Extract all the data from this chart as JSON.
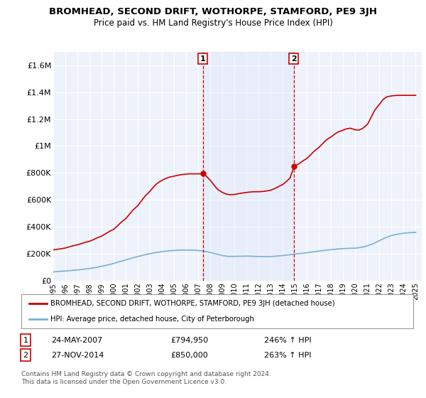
{
  "title": "BROMHEAD, SECOND DRIFT, WOTHORPE, STAMFORD, PE9 3JH",
  "subtitle": "Price paid vs. HM Land Registry's House Price Index (HPI)",
  "ylim": [
    0,
    1700000
  ],
  "yticks": [
    0,
    200000,
    400000,
    600000,
    800000,
    1000000,
    1200000,
    1400000,
    1600000
  ],
  "ytick_labels": [
    "£0",
    "£200K",
    "£400K",
    "£600K",
    "£800K",
    "£1M",
    "£1.2M",
    "£1.4M",
    "£1.6M"
  ],
  "background_color": "#ffffff",
  "plot_bg_color": "#eef2fb",
  "grid_color": "#ffffff",
  "red_line_color": "#cc0000",
  "blue_line_color": "#7ab0d4",
  "marker1_date": 2007.39,
  "marker1_value": 794950,
  "marker1_label": "1",
  "marker1_text": "24-MAY-2007",
  "marker1_price": "£794,950",
  "marker1_hpi": "246% ↑ HPI",
  "marker2_date": 2014.9,
  "marker2_value": 850000,
  "marker2_label": "2",
  "marker2_text": "27-NOV-2014",
  "marker2_price": "£850,000",
  "marker2_hpi": "263% ↑ HPI",
  "legend_line1": "BROMHEAD, SECOND DRIFT, WOTHORPE, STAMFORD, PE9 3JH (detached house)",
  "legend_line2": "HPI: Average price, detached house, City of Peterborough",
  "footer1": "Contains HM Land Registry data © Crown copyright and database right 2024.",
  "footer2": "This data is licensed under the Open Government Licence v3.0.",
  "x_start": 1995.0,
  "x_end": 2025.5,
  "xtick_years": [
    1995,
    1996,
    1997,
    1998,
    1999,
    2000,
    2001,
    2002,
    2003,
    2004,
    2005,
    2006,
    2007,
    2008,
    2009,
    2010,
    2011,
    2012,
    2013,
    2014,
    2015,
    2016,
    2017,
    2018,
    2019,
    2020,
    2021,
    2022,
    2023,
    2024,
    2025
  ],
  "red_x": [
    1995.0,
    1995.3,
    1995.6,
    1996.0,
    1996.3,
    1996.6,
    1997.0,
    1997.3,
    1997.6,
    1998.0,
    1998.3,
    1998.6,
    1999.0,
    1999.3,
    1999.6,
    2000.0,
    2000.3,
    2000.6,
    2001.0,
    2001.3,
    2001.6,
    2002.0,
    2002.3,
    2002.6,
    2003.0,
    2003.3,
    2003.6,
    2004.0,
    2004.3,
    2004.6,
    2005.0,
    2005.3,
    2005.6,
    2006.0,
    2006.3,
    2006.6,
    2007.0,
    2007.39,
    2007.6,
    2008.0,
    2008.3,
    2008.6,
    2009.0,
    2009.3,
    2009.6,
    2010.0,
    2010.3,
    2010.6,
    2011.0,
    2011.3,
    2011.6,
    2012.0,
    2012.3,
    2012.6,
    2013.0,
    2013.3,
    2013.6,
    2014.0,
    2014.3,
    2014.6,
    2014.9,
    2015.0,
    2015.3,
    2015.6,
    2016.0,
    2016.3,
    2016.6,
    2017.0,
    2017.3,
    2017.6,
    2018.0,
    2018.3,
    2018.6,
    2019.0,
    2019.3,
    2019.6,
    2020.0,
    2020.3,
    2020.6,
    2021.0,
    2021.3,
    2021.6,
    2022.0,
    2022.3,
    2022.6,
    2023.0,
    2023.3,
    2023.6,
    2024.0,
    2024.3,
    2024.6,
    2025.0
  ],
  "red_y": [
    228000,
    232000,
    236000,
    242000,
    250000,
    258000,
    266000,
    274000,
    283000,
    292000,
    303000,
    316000,
    330000,
    346000,
    363000,
    381000,
    405000,
    432000,
    460000,
    492000,
    524000,
    557000,
    592000,
    628000,
    663000,
    695000,
    722000,
    745000,
    758000,
    768000,
    776000,
    782000,
    787000,
    791000,
    793000,
    793000,
    793000,
    794950,
    782000,
    745000,
    710000,
    678000,
    655000,
    643000,
    638000,
    640000,
    645000,
    650000,
    655000,
    658000,
    660000,
    660000,
    662000,
    665000,
    672000,
    682000,
    696000,
    714000,
    736000,
    762000,
    840000,
    850000,
    866000,
    885000,
    908000,
    934000,
    962000,
    990000,
    1018000,
    1045000,
    1068000,
    1088000,
    1105000,
    1118000,
    1128000,
    1132000,
    1120000,
    1118000,
    1130000,
    1160000,
    1210000,
    1265000,
    1310000,
    1345000,
    1365000,
    1372000,
    1375000,
    1376000,
    1376000,
    1376000,
    1376000,
    1376000
  ],
  "blue_x": [
    1995.0,
    1995.5,
    1996.0,
    1996.5,
    1997.0,
    1997.5,
    1998.0,
    1998.5,
    1999.0,
    1999.5,
    2000.0,
    2000.5,
    2001.0,
    2001.5,
    2002.0,
    2002.5,
    2003.0,
    2003.5,
    2004.0,
    2004.5,
    2005.0,
    2005.5,
    2006.0,
    2006.5,
    2007.0,
    2007.5,
    2008.0,
    2008.5,
    2009.0,
    2009.5,
    2010.0,
    2010.5,
    2011.0,
    2011.5,
    2012.0,
    2012.5,
    2013.0,
    2013.5,
    2014.0,
    2014.5,
    2015.0,
    2015.5,
    2016.0,
    2016.5,
    2017.0,
    2017.5,
    2018.0,
    2018.5,
    2019.0,
    2019.5,
    2020.0,
    2020.5,
    2021.0,
    2021.5,
    2022.0,
    2022.5,
    2023.0,
    2023.5,
    2024.0,
    2024.5,
    2025.0
  ],
  "blue_y": [
    65000,
    68000,
    71000,
    75000,
    79000,
    84000,
    90000,
    97000,
    106000,
    116000,
    128000,
    141000,
    154000,
    167000,
    179000,
    190000,
    200000,
    208000,
    215000,
    220000,
    224000,
    226000,
    227000,
    226000,
    224000,
    218000,
    209000,
    198000,
    186000,
    180000,
    180000,
    181000,
    182000,
    181000,
    179000,
    178000,
    179000,
    182000,
    186000,
    191000,
    197000,
    202000,
    207000,
    213000,
    219000,
    225000,
    230000,
    234000,
    238000,
    240000,
    241000,
    247000,
    258000,
    275000,
    297000,
    318000,
    335000,
    345000,
    352000,
    356000,
    358000
  ]
}
